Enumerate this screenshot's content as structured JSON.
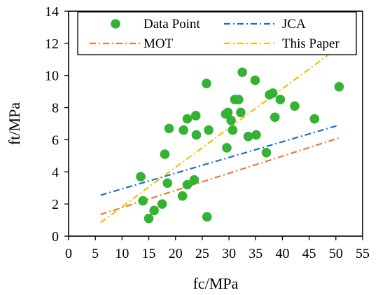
{
  "chart_data": {
    "type": "scatter",
    "xlabel": "fc/MPa",
    "ylabel": "ft/MPa",
    "xlim": [
      0,
      55
    ],
    "ylim": [
      0,
      14
    ],
    "x_ticks": [
      "0",
      "5",
      "10",
      "15",
      "20",
      "25",
      "30",
      "35",
      "40",
      "45",
      "50",
      "55"
    ],
    "y_ticks": [
      "0",
      "2",
      "4",
      "6",
      "8",
      "10",
      "12",
      "14"
    ],
    "grid": false,
    "legend_position": "top",
    "series": [
      {
        "name": "Data Point",
        "kind": "scatter",
        "color": "#33b233",
        "points": [
          [
            13.5,
            3.7
          ],
          [
            13.9,
            2.2
          ],
          [
            15.0,
            1.1
          ],
          [
            16.0,
            1.6
          ],
          [
            17.5,
            2.0
          ],
          [
            18.0,
            5.1
          ],
          [
            18.5,
            3.3
          ],
          [
            18.8,
            6.7
          ],
          [
            21.3,
            2.5
          ],
          [
            21.5,
            6.6
          ],
          [
            22.2,
            7.3
          ],
          [
            22.2,
            3.2
          ],
          [
            23.5,
            3.5
          ],
          [
            23.8,
            7.5
          ],
          [
            23.9,
            6.3
          ],
          [
            25.8,
            9.5
          ],
          [
            25.9,
            1.2
          ],
          [
            26.2,
            6.6
          ],
          [
            29.4,
            7.6
          ],
          [
            29.6,
            5.5
          ],
          [
            29.8,
            7.7
          ],
          [
            30.4,
            7.2
          ],
          [
            30.7,
            6.6
          ],
          [
            31.1,
            8.5
          ],
          [
            31.8,
            8.5
          ],
          [
            32.2,
            7.7
          ],
          [
            32.5,
            10.2
          ],
          [
            33.6,
            6.2
          ],
          [
            34.9,
            9.7
          ],
          [
            35.1,
            6.3
          ],
          [
            37.0,
            5.2
          ],
          [
            37.6,
            8.8
          ],
          [
            38.2,
            8.9
          ],
          [
            38.6,
            7.4
          ],
          [
            39.6,
            8.5
          ],
          [
            42.3,
            8.1
          ],
          [
            46.0,
            7.3
          ],
          [
            50.6,
            9.3
          ]
        ]
      },
      {
        "name": "JCA",
        "kind": "line",
        "color": "#1a72c8",
        "dash": "dashdot",
        "x": [
          6,
          50.5
        ],
        "y": [
          2.55,
          6.9
        ]
      },
      {
        "name": "MOT",
        "kind": "line",
        "color": "#ee7a2e",
        "dash": "dashdot",
        "x": [
          6,
          50.5
        ],
        "y": [
          1.35,
          6.1
        ]
      },
      {
        "name": "This Paper",
        "kind": "line",
        "color": "#f2c00a",
        "dash": "dashdot",
        "x": [
          6,
          50.5
        ],
        "y": [
          0.85,
          11.75
        ]
      }
    ]
  }
}
